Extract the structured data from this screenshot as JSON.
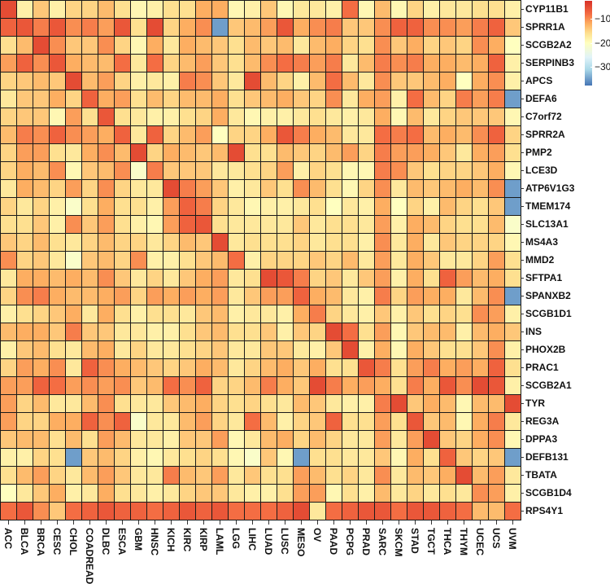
{
  "chart_data": {
    "type": "heatmap",
    "title": "",
    "xlabel": "",
    "ylabel": "",
    "columns": [
      "ACC",
      "BLCA",
      "BRCA",
      "CESC",
      "CHOL",
      "COADREAD",
      "DLBC",
      "ESCA",
      "GBM",
      "HNSC",
      "KICH",
      "KIRC",
      "KIRP",
      "LAML",
      "LGG",
      "LIHC",
      "LUAD",
      "LUSC",
      "MESO",
      "OV",
      "PAAD",
      "PCPG",
      "PRAD",
      "SARC",
      "SKCM",
      "STAD",
      "TGCT",
      "THCA",
      "THYM",
      "UCEC",
      "UCS",
      "UVM"
    ],
    "rows": [
      "CYP11B1",
      "SPRR1A",
      "SCGB2A2",
      "SERPINB3",
      "APCS",
      "DEFA6",
      "C7orf72",
      "SPRR2A",
      "PMP2",
      "LCE3D",
      "ATP6V1G3",
      "TMEM174",
      "SLC13A1",
      "MS4A3",
      "MMD2",
      "SFTPA1",
      "SPANXB2",
      "SCGB1D1",
      "INS",
      "PHOX2B",
      "PRAC1",
      "SCGB2A1",
      "TYR",
      "REG3A",
      "DPPA3",
      "DEFB131",
      "TBATA",
      "SCGB1D4",
      "RPS4Y1"
    ],
    "values": [
      [
        -5,
        -18,
        -14,
        -18,
        -15,
        -15,
        -13,
        -16,
        -19,
        -18,
        -16,
        -16,
        -12,
        -12,
        -19,
        -18,
        -14,
        -19,
        -17,
        -17,
        -18,
        -8,
        -19,
        -13,
        -19,
        -15,
        -18,
        -17,
        -17,
        -16,
        -16,
        -18
      ],
      [
        -7,
        -6,
        -9,
        -6,
        -10,
        -9,
        -11,
        -6,
        -16,
        -5,
        -15,
        -12,
        -10,
        -35,
        -14,
        -13,
        -11,
        -6,
        -12,
        -10,
        -9,
        -14,
        -14,
        -10,
        -7,
        -7,
        -10,
        -10,
        -11,
        -9,
        -7,
        -14
      ],
      [
        -16,
        -13,
        -5,
        -10,
        -14,
        -14,
        -10,
        -15,
        -19,
        -12,
        -17,
        -12,
        -13,
        -14,
        -16,
        -13,
        -14,
        -13,
        -17,
        -13,
        -12,
        -15,
        -16,
        -10,
        -14,
        -12,
        -15,
        -14,
        -15,
        -10,
        -12,
        -20
      ],
      [
        -11,
        -7,
        -10,
        -6,
        -12,
        -13,
        -13,
        -8,
        -17,
        -8,
        -15,
        -13,
        -11,
        -14,
        -16,
        -13,
        -10,
        -8,
        -9,
        -11,
        -9,
        -17,
        -13,
        -9,
        -10,
        -9,
        -12,
        -12,
        -13,
        -12,
        -7,
        -18
      ],
      [
        -15,
        -14,
        -13,
        -14,
        -5,
        -13,
        -11,
        -15,
        -18,
        -17,
        -18,
        -9,
        -10,
        -14,
        -17,
        -5,
        -13,
        -15,
        -18,
        -13,
        -8,
        -13,
        -17,
        -10,
        -14,
        -14,
        -13,
        -12,
        -20,
        -12,
        -10,
        -18
      ],
      [
        -17,
        -14,
        -14,
        -12,
        -15,
        -7,
        -12,
        -11,
        -16,
        -13,
        -15,
        -13,
        -13,
        -12,
        -16,
        -14,
        -13,
        -12,
        -14,
        -15,
        -10,
        -17,
        -12,
        -11,
        -18,
        -8,
        -13,
        -15,
        -9,
        -11,
        -9,
        -35
      ],
      [
        -15,
        -14,
        -14,
        -19,
        -11,
        -16,
        -6,
        -16,
        -17,
        -18,
        -18,
        -16,
        -15,
        -12,
        -17,
        -19,
        -18,
        -18,
        -17,
        -16,
        -17,
        -18,
        -17,
        -12,
        -19,
        -13,
        -17,
        -15,
        -14,
        -14,
        -14,
        -19
      ],
      [
        -13,
        -9,
        -10,
        -7,
        -10,
        -11,
        -12,
        -7,
        -17,
        -7,
        -15,
        -13,
        -11,
        -20,
        -15,
        -15,
        -12,
        -6,
        -9,
        -12,
        -13,
        -17,
        -17,
        -8,
        -9,
        -8,
        -13,
        -12,
        -13,
        -10,
        -7,
        -15
      ],
      [
        -15,
        -11,
        -11,
        -16,
        -17,
        -12,
        -10,
        -13,
        -5,
        -15,
        -12,
        -13,
        -14,
        -13,
        -5,
        -16,
        -16,
        -13,
        -14,
        -15,
        -13,
        -11,
        -15,
        -9,
        -11,
        -11,
        -12,
        -14,
        -17,
        -12,
        -11,
        -16
      ],
      [
        -15,
        -12,
        -13,
        -10,
        -19,
        -14,
        -13,
        -10,
        -21,
        -9,
        -14,
        -14,
        -14,
        -17,
        -17,
        -16,
        -15,
        -11,
        -18,
        -15,
        -16,
        -19,
        -19,
        -9,
        -10,
        -14,
        -16,
        -15,
        -15,
        -14,
        -12,
        -19
      ],
      [
        -17,
        -12,
        -13,
        -15,
        -11,
        -15,
        -10,
        -15,
        -17,
        -17,
        -5,
        -9,
        -11,
        -14,
        -18,
        -17,
        -14,
        -16,
        -10,
        -13,
        -16,
        -19,
        -15,
        -10,
        -17,
        -13,
        -14,
        -13,
        -12,
        -13,
        -10,
        -35
      ],
      [
        -15,
        -17,
        -15,
        -18,
        -21,
        -16,
        -12,
        -16,
        -16,
        -18,
        -11,
        -7,
        -9,
        -15,
        -17,
        -19,
        -18,
        -18,
        -17,
        -16,
        -20,
        -17,
        -18,
        -12,
        -20,
        -15,
        -18,
        -13,
        -15,
        -16,
        -14,
        -35
      ],
      [
        -16,
        -16,
        -14,
        -18,
        -10,
        -14,
        -11,
        -16,
        -18,
        -19,
        -11,
        -7,
        -6,
        -16,
        -17,
        -17,
        -17,
        -17,
        -14,
        -17,
        -16,
        -16,
        -17,
        -11,
        -18,
        -12,
        -13,
        -15,
        -16,
        -16,
        -13,
        -21
      ],
      [
        -14,
        -15,
        -13,
        -16,
        -17,
        -15,
        -13,
        -15,
        -15,
        -17,
        -15,
        -13,
        -14,
        -5,
        -17,
        -16,
        -16,
        -16,
        -15,
        -17,
        -16,
        -16,
        -18,
        -10,
        -17,
        -12,
        -17,
        -14,
        -15,
        -15,
        -15,
        -19
      ],
      [
        -10,
        -15,
        -14,
        -17,
        -21,
        -14,
        -13,
        -15,
        -10,
        -18,
        -18,
        -16,
        -14,
        -13,
        -8,
        -18,
        -15,
        -15,
        -15,
        -14,
        -15,
        -13,
        -17,
        -11,
        -17,
        -12,
        -14,
        -17,
        -17,
        -15,
        -11,
        -16
      ],
      [
        -17,
        -12,
        -12,
        -13,
        -12,
        -13,
        -10,
        -14,
        -17,
        -15,
        -17,
        -14,
        -12,
        -11,
        -17,
        -16,
        -5,
        -6,
        -9,
        -15,
        -14,
        -17,
        -14,
        -11,
        -18,
        -12,
        -16,
        -7,
        -11,
        -13,
        -12,
        -16
      ],
      [
        -15,
        -10,
        -9,
        -12,
        -13,
        -13,
        -12,
        -11,
        -15,
        -11,
        -12,
        -11,
        -12,
        -11,
        -17,
        -14,
        -11,
        -11,
        -7,
        -12,
        -13,
        -17,
        -18,
        -9,
        -15,
        -11,
        -12,
        -12,
        -17,
        -13,
        -10,
        -35
      ],
      [
        -18,
        -16,
        -15,
        -14,
        -12,
        -17,
        -12,
        -16,
        -18,
        -16,
        -16,
        -17,
        -14,
        -13,
        -18,
        -17,
        -17,
        -18,
        -12,
        -9,
        -15,
        -17,
        -18,
        -14,
        -18,
        -14,
        -16,
        -15,
        -16,
        -10,
        -11,
        -18
      ],
      [
        -13,
        -12,
        -12,
        -14,
        -9,
        -14,
        -14,
        -17,
        -17,
        -18,
        -18,
        -16,
        -14,
        -13,
        -16,
        -16,
        -14,
        -18,
        -14,
        -15,
        -5,
        -8,
        -16,
        -11,
        -19,
        -14,
        -13,
        -13,
        -18,
        -13,
        -12,
        -14
      ],
      [
        -18,
        -14,
        -13,
        -16,
        -17,
        -13,
        -12,
        -17,
        -15,
        -17,
        -17,
        -16,
        -15,
        -14,
        -17,
        -17,
        -14,
        -14,
        -17,
        -18,
        -14,
        -5,
        -18,
        -12,
        -19,
        -12,
        -14,
        -16,
        -16,
        -14,
        -10,
        -18
      ],
      [
        -15,
        -11,
        -12,
        -10,
        -17,
        -7,
        -10,
        -12,
        -13,
        -14,
        -15,
        -14,
        -12,
        -13,
        -17,
        -15,
        -13,
        -12,
        -14,
        -12,
        -16,
        -16,
        -6,
        -9,
        -16,
        -11,
        -9,
        -12,
        -11,
        -12,
        -7,
        -16
      ],
      [
        -11,
        -11,
        -7,
        -8,
        -11,
        -10,
        -11,
        -10,
        -14,
        -13,
        -8,
        -10,
        -7,
        -15,
        -15,
        -13,
        -9,
        -12,
        -14,
        -5,
        -9,
        -12,
        -11,
        -12,
        -16,
        -9,
        -12,
        -6,
        -10,
        -5,
        -6,
        -18
      ],
      [
        -11,
        -15,
        -13,
        -17,
        -17,
        -13,
        -10,
        -16,
        -17,
        -17,
        -14,
        -13,
        -12,
        -15,
        -16,
        -15,
        -16,
        -17,
        -13,
        -14,
        -17,
        -18,
        -18,
        -9,
        -5,
        -14,
        -12,
        -13,
        -19,
        -13,
        -13,
        -5
      ],
      [
        -11,
        -15,
        -15,
        -12,
        -12,
        -7,
        -10,
        -7,
        -21,
        -17,
        -17,
        -13,
        -11,
        -15,
        -17,
        -8,
        -13,
        -18,
        -15,
        -14,
        -7,
        -16,
        -16,
        -11,
        -16,
        -6,
        -14,
        -13,
        -19,
        -12,
        -9,
        -17
      ],
      [
        -14,
        -13,
        -13,
        -16,
        -13,
        -16,
        -11,
        -13,
        -17,
        -17,
        -18,
        -14,
        -14,
        -11,
        -19,
        -17,
        -13,
        -12,
        -15,
        -13,
        -15,
        -17,
        -17,
        -11,
        -17,
        -11,
        -5,
        -14,
        -15,
        -12,
        -10,
        -19
      ],
      [
        -18,
        -18,
        -15,
        -16,
        -35,
        -14,
        -13,
        -15,
        -18,
        -19,
        -17,
        -16,
        -15,
        -16,
        -19,
        -21,
        -14,
        -19,
        -35,
        -16,
        -16,
        -17,
        -17,
        -14,
        -19,
        -12,
        -16,
        -7,
        -14,
        -15,
        -14,
        -35
      ],
      [
        -16,
        -13,
        -11,
        -15,
        -17,
        -13,
        -11,
        -14,
        -17,
        -17,
        -9,
        -13,
        -14,
        -11,
        -17,
        -14,
        -16,
        -16,
        -11,
        -13,
        -16,
        -15,
        -17,
        -10,
        -17,
        -13,
        -14,
        -12,
        -5,
        -13,
        -11,
        -17
      ],
      [
        -20,
        -17,
        -14,
        -12,
        -18,
        -17,
        -12,
        -16,
        -17,
        -18,
        -17,
        -15,
        -14,
        -14,
        -17,
        -18,
        -18,
        -16,
        -11,
        -11,
        -19,
        -16,
        -18,
        -13,
        -17,
        -15,
        -17,
        -16,
        -17,
        -10,
        -11,
        -18
      ],
      [
        -8,
        -6,
        -10,
        -14,
        -8,
        -7,
        -6,
        -7,
        -7,
        -8,
        -7,
        -6,
        -7,
        -6,
        -8,
        -8,
        -8,
        -7,
        -5,
        -17,
        -8,
        -7,
        -6,
        -6,
        -8,
        -6,
        -6,
        -7,
        -8,
        -13,
        -13,
        -8
      ]
    ],
    "colorbar": {
      "range": [
        -37.8,
        -2.4
      ],
      "ticks": [
        {
          "value": -10,
          "label": "−10"
        },
        {
          "value": -20,
          "label": "−20"
        },
        {
          "value": -30,
          "label": "−30"
        }
      ],
      "stops": [
        {
          "value": -37.8,
          "color": "#4575b4"
        },
        {
          "value": -31,
          "color": "#abd9e9"
        },
        {
          "value": -26,
          "color": "#e0f3f8"
        },
        {
          "value": -20,
          "color": "#ffffbf"
        },
        {
          "value": -16,
          "color": "#fee090"
        },
        {
          "value": -12,
          "color": "#fdae61"
        },
        {
          "value": -8,
          "color": "#f46d43"
        },
        {
          "value": -2.4,
          "color": "#d73027"
        }
      ]
    },
    "legend_position": "right",
    "cell_border_color": "#1a1a1a"
  }
}
